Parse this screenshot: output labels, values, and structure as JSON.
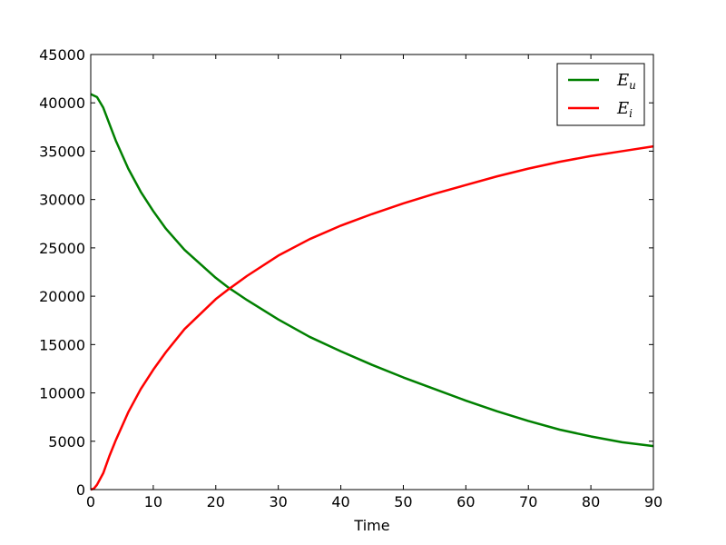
{
  "chart_data": {
    "type": "line",
    "title": "",
    "xlabel": "Time",
    "ylabel": "",
    "xlim": [
      0,
      90
    ],
    "ylim": [
      0,
      45000
    ],
    "xticks": [
      0,
      10,
      20,
      30,
      40,
      50,
      60,
      70,
      80,
      90
    ],
    "yticks": [
      0,
      5000,
      10000,
      15000,
      20000,
      25000,
      30000,
      35000,
      40000,
      45000
    ],
    "grid": false,
    "legend_position": "top-right",
    "series": [
      {
        "name": "E_u",
        "legend_base": "E",
        "legend_sub": "u",
        "color": "#008000",
        "x": [
          0,
          1,
          2,
          3,
          4,
          6,
          8,
          10,
          12,
          15,
          20,
          22,
          25,
          30,
          35,
          40,
          45,
          50,
          55,
          60,
          65,
          70,
          75,
          80,
          85,
          90
        ],
        "y": [
          40900,
          40600,
          39500,
          37800,
          36100,
          33200,
          30800,
          28800,
          27000,
          24800,
          21900,
          20900,
          19600,
          17600,
          15800,
          14300,
          12900,
          11600,
          10400,
          9200,
          8100,
          7100,
          6200,
          5500,
          4900,
          4500
        ]
      },
      {
        "name": "E_i",
        "legend_base": "E",
        "legend_sub": "i",
        "color": "#ff0000",
        "x": [
          0,
          0.5,
          1,
          2,
          3,
          4,
          6,
          8,
          10,
          12,
          15,
          20,
          22,
          25,
          30,
          35,
          40,
          45,
          50,
          55,
          60,
          65,
          70,
          75,
          80,
          85,
          90
        ],
        "y": [
          0,
          100,
          500,
          1700,
          3500,
          5100,
          8000,
          10400,
          12400,
          14200,
          16600,
          19700,
          20700,
          22100,
          24200,
          25900,
          27300,
          28500,
          29600,
          30600,
          31500,
          32400,
          33200,
          33900,
          34500,
          35000,
          35500
        ]
      }
    ]
  }
}
